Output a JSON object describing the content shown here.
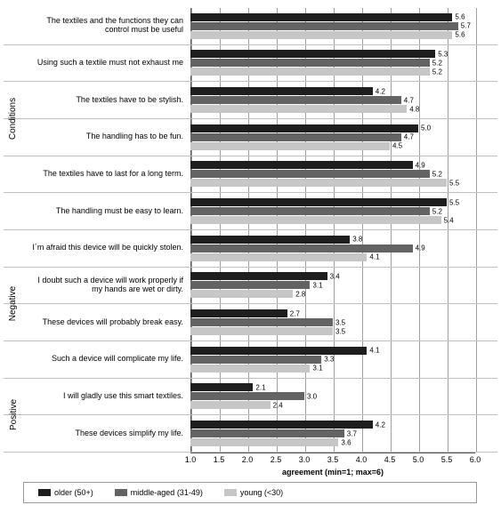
{
  "chart": {
    "type": "bar-horizontal-grouped",
    "xlabel": "agreement (min=1; max=6)",
    "background_color": "#ffffff",
    "grid_color": "#9f9f9f",
    "xmin": 1.0,
    "xmax": 6.0,
    "xticks": [
      1.0,
      1.5,
      2.0,
      2.5,
      3.0,
      3.5,
      4.0,
      4.5,
      5.0,
      5.5,
      6.0
    ],
    "series": [
      {
        "key": "older",
        "label": "older (50+)",
        "color": "#1e1e1e"
      },
      {
        "key": "middle",
        "label": "middle-aged (31-49)",
        "color": "#636363"
      },
      {
        "key": "young",
        "label": "young (<30)",
        "color": "#c6c6c6"
      }
    ],
    "groups": [
      {
        "label": "Conditions",
        "items": [
          {
            "text": "The textiles and the functions they can control must be useful",
            "older": 5.6,
            "middle": 5.7,
            "young": 5.6
          },
          {
            "text": "Using such a textile must not exhaust me",
            "older": 5.3,
            "middle": 5.2,
            "young": 5.2
          },
          {
            "text": "The textiles have to be stylish.",
            "older": 4.2,
            "middle": 4.7,
            "young": 4.8
          },
          {
            "text": "The handling has to be fun.",
            "older": 5.0,
            "middle": 4.7,
            "young": 4.5
          },
          {
            "text": "The textiles have to last for a long term.",
            "older": 4.9,
            "middle": 5.2,
            "young": 5.5
          },
          {
            "text": "The handling must be easy to learn.",
            "older": 5.5,
            "middle": 5.2,
            "young": 5.4
          }
        ]
      },
      {
        "label": "Negative",
        "items": [
          {
            "text": "I´m afraid this device will be quickly stolen.",
            "older": 3.8,
            "middle": 4.9,
            "young": 4.1
          },
          {
            "text": "I doubt such a device will work properly if my hands are wet or dirty.",
            "older": 3.4,
            "middle": 3.1,
            "young": 2.8
          },
          {
            "text": "These devices will probably break easy.",
            "older": 2.7,
            "middle": 3.5,
            "young": 3.5
          },
          {
            "text": "Such a device will complicate my life.",
            "older": 4.1,
            "middle": 3.3,
            "young": 3.1
          }
        ]
      },
      {
        "label": "Positive",
        "items": [
          {
            "text": "I will gladly use this smart textiles.",
            "older": 2.1,
            "middle": 3.0,
            "young": 2.4
          },
          {
            "text": "These devices simplify my life.",
            "older": 4.2,
            "middle": 3.7,
            "young": 3.6
          }
        ]
      }
    ]
  }
}
